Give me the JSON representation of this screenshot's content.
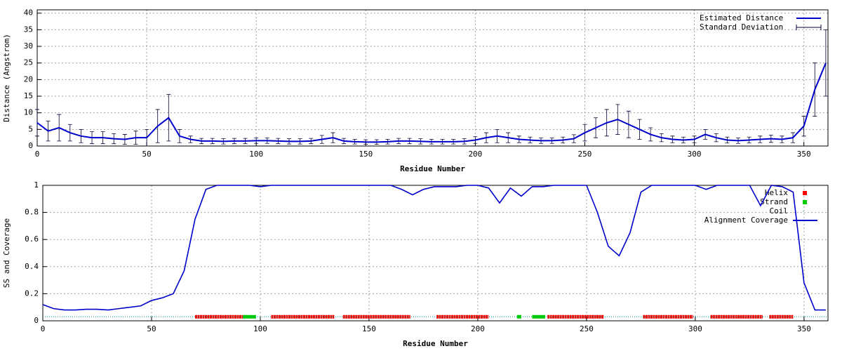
{
  "chart_data": [
    {
      "type": "errorline",
      "ylabel": "Distance (Angstrom)",
      "xlabel": "Residue Number",
      "xlim": [
        0,
        361
      ],
      "ylim": [
        0,
        41
      ],
      "xticks": [
        0,
        50,
        100,
        150,
        200,
        250,
        300,
        350
      ],
      "yticks": [
        0,
        5,
        10,
        15,
        20,
        25,
        30,
        35,
        40
      ],
      "grid": true,
      "legend": "top-right",
      "x": [
        0,
        5,
        10,
        15,
        20,
        25,
        30,
        35,
        40,
        45,
        50,
        55,
        60,
        65,
        70,
        75,
        80,
        85,
        90,
        95,
        100,
        105,
        110,
        115,
        120,
        125,
        130,
        135,
        140,
        145,
        150,
        155,
        160,
        165,
        170,
        175,
        180,
        185,
        190,
        195,
        200,
        205,
        210,
        215,
        220,
        225,
        230,
        235,
        240,
        245,
        250,
        255,
        260,
        265,
        270,
        275,
        280,
        285,
        290,
        295,
        300,
        305,
        310,
        315,
        320,
        325,
        330,
        335,
        340,
        345,
        350,
        355,
        360
      ],
      "series": [
        {
          "name": "Estimated Distance",
          "color": "#0000cc",
          "values": [
            7,
            4.5,
            5.5,
            4,
            3,
            2.5,
            2.5,
            2.2,
            2,
            2.5,
            2.5,
            6,
            8.5,
            3,
            2,
            1.5,
            1.5,
            1.4,
            1.5,
            1.5,
            1.6,
            1.6,
            1.5,
            1.4,
            1.4,
            1.5,
            2,
            2.5,
            1.5,
            1.3,
            1.2,
            1.2,
            1.3,
            1.5,
            1.5,
            1.4,
            1.3,
            1.3,
            1.3,
            1.4,
            1.8,
            2.5,
            3,
            2.5,
            2,
            1.8,
            1.6,
            1.6,
            1.8,
            2.2,
            4,
            5.5,
            7,
            8,
            6.5,
            5,
            3.5,
            2.5,
            2,
            1.8,
            2,
            3.5,
            2.5,
            1.8,
            1.6,
            1.8,
            2,
            2.2,
            2,
            2.5,
            6,
            17,
            25
          ]
        },
        {
          "name": "Standard Deviation",
          "color": "#000033",
          "values": [
            4,
            3,
            4,
            2.5,
            2,
            1.8,
            1.8,
            1.5,
            1.5,
            2,
            2.5,
            5,
            7,
            2,
            1,
            0.8,
            0.8,
            0.8,
            0.8,
            0.8,
            0.8,
            0.8,
            0.8,
            0.8,
            0.8,
            0.8,
            1.2,
            1.5,
            0.8,
            0.7,
            0.7,
            0.7,
            0.7,
            0.8,
            0.8,
            0.8,
            0.7,
            0.7,
            0.7,
            0.8,
            1,
            1.5,
            2,
            1.5,
            1,
            0.9,
            0.8,
            0.8,
            0.9,
            1.2,
            2.5,
            3,
            4,
            4.5,
            4,
            3,
            2,
            1.2,
            1,
            0.9,
            1,
            1.5,
            1.2,
            0.9,
            0.8,
            0.9,
            1,
            1.1,
            1,
            1.5,
            3,
            8,
            10
          ]
        }
      ]
    },
    {
      "type": "coverage",
      "ylabel": "SS and Coverage",
      "xlabel": "Residue Number",
      "xlim": [
        0,
        361
      ],
      "ylim": [
        0,
        1
      ],
      "xticks": [
        0,
        50,
        100,
        150,
        200,
        250,
        300,
        350
      ],
      "yticks": [
        0,
        0.2,
        0.4,
        0.6,
        0.8,
        1
      ],
      "grid": true,
      "legend": "top-right",
      "marker_level": 0.03,
      "ss": [
        {
          "name": "Helix",
          "color": "#ff0000",
          "ranges": [
            [
              70,
              92
            ],
            [
              105,
              134
            ],
            [
              138,
              169
            ],
            [
              181,
              205
            ],
            [
              232,
              258
            ],
            [
              276,
              299
            ],
            [
              307,
              331
            ],
            [
              334,
              345
            ]
          ]
        },
        {
          "name": "Strand",
          "color": "#00cc00",
          "ranges": [
            [
              92,
              98
            ],
            [
              218,
              220
            ],
            [
              225,
              231
            ]
          ]
        },
        {
          "name": "Coil",
          "color": "#009999",
          "ranges": [
            [
              0,
              361
            ]
          ]
        }
      ],
      "x": [
        0,
        5,
        10,
        15,
        20,
        25,
        30,
        35,
        40,
        45,
        50,
        55,
        60,
        65,
        70,
        75,
        80,
        85,
        90,
        95,
        100,
        105,
        110,
        115,
        120,
        125,
        130,
        135,
        140,
        145,
        150,
        155,
        160,
        165,
        170,
        175,
        180,
        185,
        190,
        195,
        200,
        205,
        210,
        215,
        220,
        225,
        230,
        235,
        240,
        245,
        250,
        255,
        260,
        265,
        270,
        275,
        280,
        285,
        290,
        295,
        300,
        305,
        310,
        315,
        320,
        325,
        330,
        335,
        340,
        345,
        350,
        355,
        360
      ],
      "series": [
        {
          "name": "Alignment Coverage",
          "color": "#0000cc",
          "values": [
            0.12,
            0.09,
            0.08,
            0.08,
            0.085,
            0.085,
            0.08,
            0.09,
            0.1,
            0.11,
            0.15,
            0.17,
            0.2,
            0.37,
            0.75,
            0.97,
            1,
            1,
            1,
            1,
            0.99,
            1,
            1,
            1,
            1,
            1,
            1,
            1,
            1,
            1,
            1,
            1,
            1,
            0.97,
            0.93,
            0.97,
            0.99,
            0.99,
            0.99,
            1,
            1,
            0.98,
            0.87,
            0.98,
            0.92,
            0.99,
            0.99,
            1,
            1,
            1,
            1,
            0.8,
            0.55,
            0.48,
            0.65,
            0.95,
            1,
            1,
            1,
            1,
            1,
            0.97,
            1,
            1,
            1,
            1,
            0.85,
            1,
            0.99,
            0.95,
            0.28,
            0.08,
            0.08
          ]
        }
      ]
    }
  ]
}
